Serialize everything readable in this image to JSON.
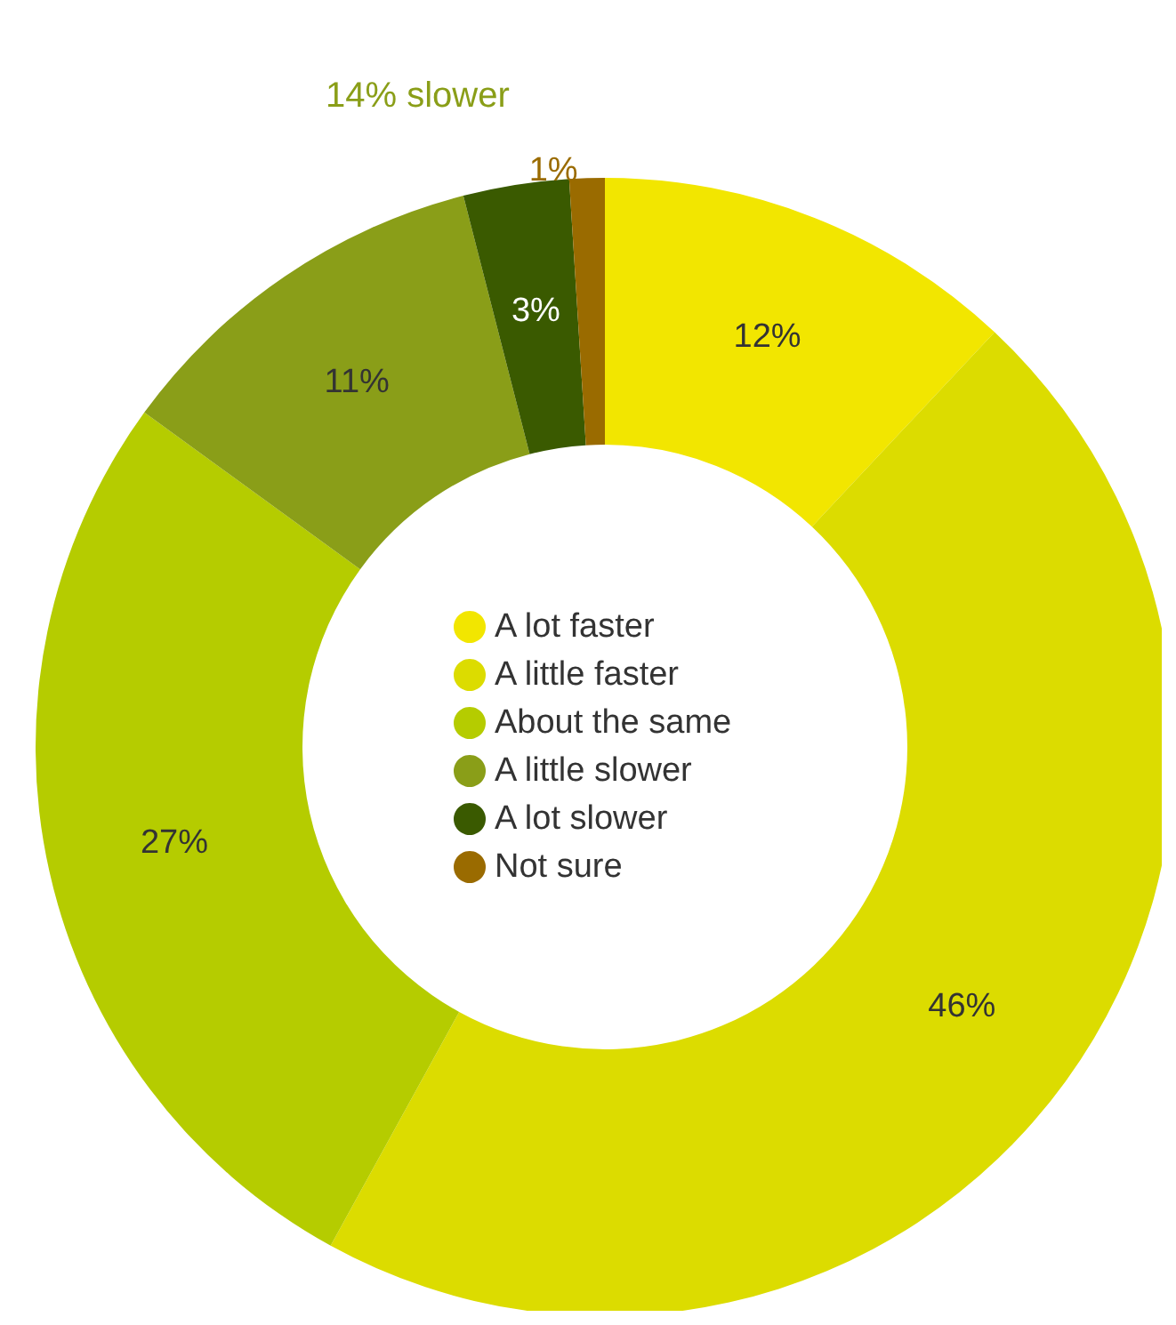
{
  "chart_data": {
    "type": "donut",
    "categories": [
      "A lot faster",
      "A little faster",
      "About the same",
      "A little slower",
      "A lot slower",
      "Not sure"
    ],
    "values": [
      12,
      46,
      27,
      11,
      3,
      1
    ],
    "colors": [
      "#f2e600",
      "#dcdc00",
      "#b5cc00",
      "#8a9e18",
      "#3a5a00",
      "#9a6b00"
    ],
    "value_labels": [
      "12%",
      "46%",
      "27%",
      "11%",
      "3%",
      "1%"
    ],
    "legend": "center",
    "annotations": [
      "14% slower"
    ]
  }
}
